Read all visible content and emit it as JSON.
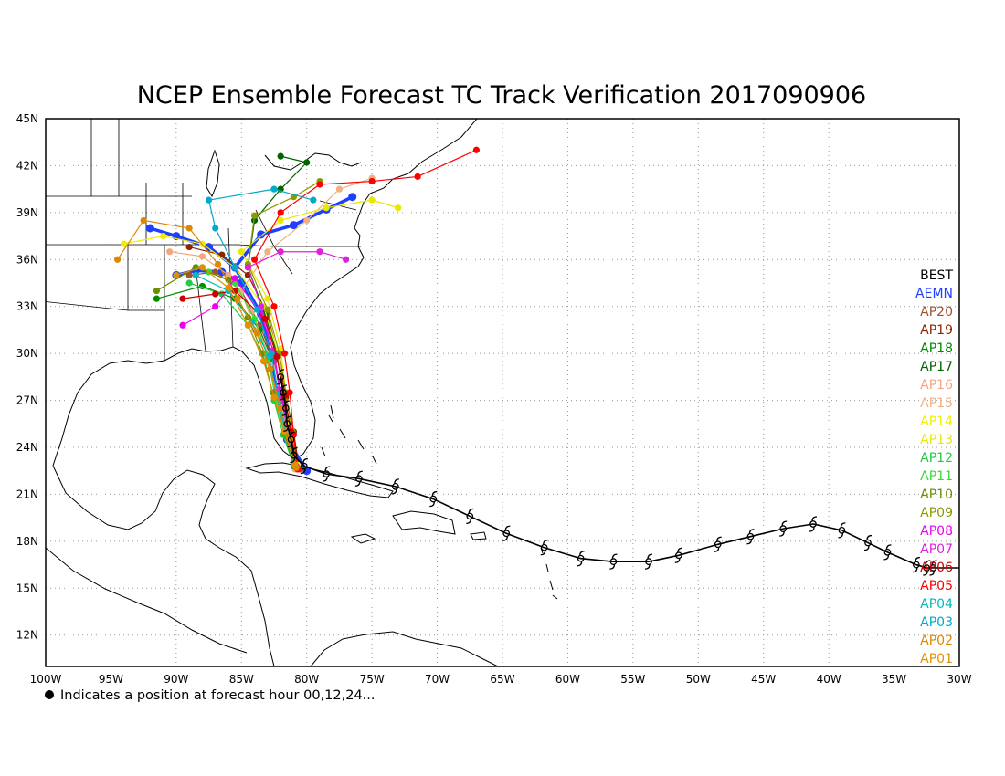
{
  "title": "NCEP Ensemble Forecast TC Track Verification 2017090906",
  "footnote": "Indicates a position at forecast hour 00,12,24...",
  "map": {
    "lon_range": [
      -100,
      -30
    ],
    "lat_range": [
      10,
      45
    ],
    "lon_ticks": [
      {
        "v": -100,
        "label": "100W"
      },
      {
        "v": -95,
        "label": "95W"
      },
      {
        "v": -90,
        "label": "90W"
      },
      {
        "v": -85,
        "label": "85W"
      },
      {
        "v": -80,
        "label": "80W"
      },
      {
        "v": -75,
        "label": "75W"
      },
      {
        "v": -70,
        "label": "70W"
      },
      {
        "v": -65,
        "label": "65W"
      },
      {
        "v": -60,
        "label": "60W"
      },
      {
        "v": -55,
        "label": "55W"
      },
      {
        "v": -50,
        "label": "50W"
      },
      {
        "v": -45,
        "label": "45W"
      },
      {
        "v": -40,
        "label": "40W"
      },
      {
        "v": -35,
        "label": "35W"
      },
      {
        "v": -30,
        "label": "30W"
      }
    ],
    "lat_ticks": [
      {
        "v": 12,
        "label": "12N"
      },
      {
        "v": 15,
        "label": "15N"
      },
      {
        "v": 18,
        "label": "18N"
      },
      {
        "v": 21,
        "label": "21N"
      },
      {
        "v": 24,
        "label": "24N"
      },
      {
        "v": 27,
        "label": "27N"
      },
      {
        "v": 30,
        "label": "30N"
      },
      {
        "v": 33,
        "label": "33N"
      },
      {
        "v": 36,
        "label": "36N"
      },
      {
        "v": 39,
        "label": "39N"
      },
      {
        "v": 42,
        "label": "42N"
      },
      {
        "v": 45,
        "label": "45N"
      }
    ],
    "grid": "dotted"
  },
  "legend": [
    {
      "label": "BEST",
      "color": "#000000"
    },
    {
      "label": "AEMN",
      "color": "#1f3fff"
    },
    {
      "label": "AP20",
      "color": "#a0522d"
    },
    {
      "label": "AP19",
      "color": "#8b2500"
    },
    {
      "label": "AP18",
      "color": "#008b00"
    },
    {
      "label": "AP17",
      "color": "#006400"
    },
    {
      "label": "AP16",
      "color": "#f4a582"
    },
    {
      "label": "AP15",
      "color": "#f0b080"
    },
    {
      "label": "AP14",
      "color": "#eeee00"
    },
    {
      "label": "AP13",
      "color": "#e8e800"
    },
    {
      "label": "AP12",
      "color": "#22cc44"
    },
    {
      "label": "AP11",
      "color": "#33dd33"
    },
    {
      "label": "AP10",
      "color": "#6a8f00"
    },
    {
      "label": "AP09",
      "color": "#8b9a00"
    },
    {
      "label": "AP08",
      "color": "#ee00ee"
    },
    {
      "label": "AP07",
      "color": "#dd22dd"
    },
    {
      "label": "AP06",
      "color": "#cc0000"
    },
    {
      "label": "AP05",
      "color": "#ff0000"
    },
    {
      "label": "AP04",
      "color": "#00bbbb"
    },
    {
      "label": "AP03",
      "color": "#00aacc"
    },
    {
      "label": "AP02",
      "color": "#dd8800"
    },
    {
      "label": "AP01",
      "color": "#e09000"
    }
  ],
  "chart_data": {
    "type": "scatter",
    "title": "NCEP Ensemble Forecast TC Track Verification 2017090906",
    "xlabel": "",
    "ylabel": "",
    "xlim": [
      -100,
      -30
    ],
    "ylim": [
      10,
      45
    ],
    "best_track": {
      "name": "BEST",
      "points": [
        [
          -32,
          16.3
        ],
        [
          -32.5,
          16.3
        ],
        [
          -33.3,
          16.5
        ],
        [
          -35.5,
          17.3
        ],
        [
          -37,
          17.9
        ],
        [
          -39,
          18.7
        ],
        [
          -41.2,
          19.1
        ],
        [
          -43.5,
          18.8
        ],
        [
          -46,
          18.3
        ],
        [
          -48.5,
          17.8
        ],
        [
          -51.5,
          17.1
        ],
        [
          -53.8,
          16.7
        ],
        [
          -56.5,
          16.7
        ],
        [
          -59,
          16.9
        ],
        [
          -61.8,
          17.6
        ],
        [
          -64.7,
          18.5
        ],
        [
          -67.5,
          19.6
        ],
        [
          -70.3,
          20.7
        ],
        [
          -73.2,
          21.5
        ],
        [
          -76,
          22.0
        ],
        [
          -78.5,
          22.3
        ],
        [
          -80.2,
          22.8
        ],
        [
          -81.0,
          23.5
        ],
        [
          -81.2,
          24.5
        ],
        [
          -81.5,
          25.5
        ],
        [
          -81.6,
          26.5
        ],
        [
          -81.8,
          27.5
        ],
        [
          -82.0,
          28.5
        ]
      ]
    },
    "ensemble": [
      {
        "name": "AEMN",
        "points": [
          [
            -80,
            22.5
          ],
          [
            -81.5,
            24.5
          ],
          [
            -82.3,
            27.5
          ],
          [
            -82.8,
            30.0
          ],
          [
            -83.5,
            32.5
          ],
          [
            -85,
            34.5
          ],
          [
            -86.5,
            35.2
          ],
          [
            -88.5,
            35.3
          ],
          [
            -90,
            35.0
          ]
        ]
      },
      {
        "name": "AEMN",
        "points": [
          [
            -83.5,
            32.5
          ],
          [
            -85.5,
            35.5
          ],
          [
            -87.5,
            36.8
          ],
          [
            -90,
            37.5
          ],
          [
            -92,
            38.0
          ]
        ]
      },
      {
        "name": "AEMN",
        "points": [
          [
            -85.5,
            35.5
          ],
          [
            -83.5,
            37.6
          ],
          [
            -81,
            38.2
          ],
          [
            -78.5,
            39.2
          ],
          [
            -76.5,
            40.0
          ]
        ]
      },
      {
        "name": "AP20",
        "points": [
          [
            -80.5,
            22.6
          ],
          [
            -81.3,
            24.8
          ],
          [
            -81.8,
            27.0
          ],
          [
            -82.5,
            29.5
          ],
          [
            -83.6,
            31.8
          ],
          [
            -85,
            34.0
          ],
          [
            -87,
            35.2
          ],
          [
            -89,
            35.0
          ]
        ]
      },
      {
        "name": "AP19",
        "points": [
          [
            -80.6,
            22.7
          ],
          [
            -81.0,
            25.0
          ],
          [
            -81.6,
            27.2
          ],
          [
            -82.2,
            29.8
          ],
          [
            -83.0,
            32.5
          ],
          [
            -84.5,
            35.0
          ],
          [
            -86.5,
            36.3
          ],
          [
            -89,
            36.8
          ]
        ]
      },
      {
        "name": "AP18",
        "points": [
          [
            -80.8,
            22.8
          ],
          [
            -81.5,
            24.7
          ],
          [
            -82.1,
            27.0
          ],
          [
            -82.6,
            29.5
          ],
          [
            -83.6,
            31.5
          ],
          [
            -85.5,
            33.5
          ],
          [
            -88.0,
            34.3
          ],
          [
            -91.5,
            33.5
          ]
        ]
      },
      {
        "name": "AP17",
        "points": [
          [
            -80.7,
            22.7
          ],
          [
            -81.2,
            25.0
          ],
          [
            -81.8,
            27.5
          ],
          [
            -82.3,
            30.0
          ],
          [
            -83.2,
            32.5
          ],
          [
            -84.5,
            35.5
          ],
          [
            -84.0,
            38.5
          ],
          [
            -82,
            40.5
          ],
          [
            -80,
            42.2
          ],
          [
            -82,
            42.6
          ]
        ]
      },
      {
        "name": "AP16",
        "points": [
          [
            -81.0,
            22.9
          ],
          [
            -81.7,
            25.0
          ],
          [
            -82.3,
            27.5
          ],
          [
            -83.0,
            30.0
          ],
          [
            -84.2,
            32.7
          ],
          [
            -86.0,
            35.0
          ],
          [
            -88.0,
            36.2
          ],
          [
            -90.5,
            36.5
          ]
        ]
      },
      {
        "name": "AP15",
        "points": [
          [
            -80.9,
            22.6
          ],
          [
            -81.4,
            24.5
          ],
          [
            -82.2,
            27.0
          ],
          [
            -82.8,
            29.3
          ],
          [
            -84.0,
            31.5
          ],
          [
            -85.0,
            34.0
          ],
          [
            -83.0,
            36.5
          ],
          [
            -80.0,
            38.5
          ],
          [
            -77.5,
            40.5
          ],
          [
            -75.0,
            41.2
          ]
        ]
      },
      {
        "name": "AP14",
        "points": [
          [
            -80.8,
            22.9
          ],
          [
            -81.3,
            25.0
          ],
          [
            -81.8,
            27.5
          ],
          [
            -82.2,
            30.0
          ],
          [
            -83.3,
            33.0
          ],
          [
            -85.5,
            35.5
          ],
          [
            -88,
            37.0
          ],
          [
            -91,
            37.5
          ],
          [
            -94,
            37.0
          ]
        ]
      },
      {
        "name": "AP13",
        "points": [
          [
            -80.7,
            22.8
          ],
          [
            -81.2,
            25.2
          ],
          [
            -81.6,
            27.5
          ],
          [
            -82.0,
            30.3
          ],
          [
            -83.0,
            33.5
          ],
          [
            -85.0,
            36.5
          ],
          [
            -82.0,
            38.5
          ],
          [
            -78.5,
            39.3
          ],
          [
            -75,
            39.8
          ],
          [
            -73,
            39.3
          ]
        ]
      },
      {
        "name": "AP12",
        "points": [
          [
            -81.0,
            22.8
          ],
          [
            -81.8,
            24.8
          ],
          [
            -82.5,
            27.0
          ],
          [
            -83.2,
            29.5
          ],
          [
            -84.5,
            31.8
          ],
          [
            -86.5,
            33.8
          ],
          [
            -89.0,
            34.5
          ]
        ]
      },
      {
        "name": "AP11",
        "points": [
          [
            -80.9,
            22.9
          ],
          [
            -81.6,
            25.0
          ],
          [
            -82.4,
            27.2
          ],
          [
            -83.0,
            29.8
          ],
          [
            -84.0,
            32.2
          ],
          [
            -85.5,
            34.5
          ],
          [
            -87.5,
            35.2
          ]
        ]
      },
      {
        "name": "AP10",
        "points": [
          [
            -81.0,
            22.8
          ],
          [
            -81.7,
            24.9
          ],
          [
            -82.6,
            27.5
          ],
          [
            -83.4,
            30.0
          ],
          [
            -84.5,
            32.3
          ],
          [
            -86.0,
            34.7
          ],
          [
            -88.5,
            35.5
          ],
          [
            -91.5,
            34.0
          ]
        ]
      },
      {
        "name": "AP09",
        "points": [
          [
            -80.7,
            22.7
          ],
          [
            -81.1,
            25.0
          ],
          [
            -81.6,
            27.5
          ],
          [
            -82.1,
            30.0
          ],
          [
            -83.0,
            32.8
          ],
          [
            -84.5,
            35.7
          ],
          [
            -84.0,
            38.8
          ],
          [
            -81,
            40.0
          ],
          [
            -79,
            41.0
          ]
        ]
      },
      {
        "name": "AP08",
        "points": [
          [
            -80.8,
            22.8
          ],
          [
            -81.4,
            25.0
          ],
          [
            -82.0,
            27.6
          ],
          [
            -82.5,
            30.0
          ],
          [
            -83.5,
            32.5
          ],
          [
            -85.5,
            34.8
          ],
          [
            -87.0,
            33.0
          ],
          [
            -89.5,
            31.8
          ]
        ]
      },
      {
        "name": "AP07",
        "points": [
          [
            -80.9,
            22.9
          ],
          [
            -81.5,
            25.2
          ],
          [
            -82.1,
            27.7
          ],
          [
            -82.6,
            30.2
          ],
          [
            -83.5,
            33.0
          ],
          [
            -84.5,
            35.5
          ],
          [
            -82.0,
            36.5
          ],
          [
            -79,
            36.5
          ],
          [
            -77,
            36.0
          ]
        ]
      },
      {
        "name": "AP06",
        "points": [
          [
            -80.8,
            22.7
          ],
          [
            -81.2,
            25.0
          ],
          [
            -81.7,
            27.3
          ],
          [
            -82.3,
            29.8
          ],
          [
            -83.2,
            32.2
          ],
          [
            -85.5,
            34.0
          ],
          [
            -87.0,
            33.8
          ],
          [
            -89.5,
            33.5
          ]
        ]
      },
      {
        "name": "AP05",
        "points": [
          [
            -80.7,
            22.6
          ],
          [
            -81.0,
            24.8
          ],
          [
            -81.3,
            27.5
          ],
          [
            -81.7,
            30.0
          ],
          [
            -82.5,
            33.0
          ],
          [
            -84.0,
            36.0
          ],
          [
            -82.0,
            39.0
          ],
          [
            -79,
            40.8
          ],
          [
            -75,
            41.0
          ],
          [
            -71.5,
            41.3
          ],
          [
            -67,
            43.0
          ]
        ]
      },
      {
        "name": "AP04",
        "points": [
          [
            -81.0,
            22.9
          ],
          [
            -81.6,
            25.0
          ],
          [
            -82.3,
            27.3
          ],
          [
            -82.9,
            29.8
          ],
          [
            -84.2,
            32.0
          ],
          [
            -86.0,
            34.0
          ],
          [
            -88.5,
            35.0
          ]
        ]
      },
      {
        "name": "AP03",
        "points": [
          [
            -80.9,
            22.8
          ],
          [
            -81.5,
            24.9
          ],
          [
            -82.2,
            27.4
          ],
          [
            -82.7,
            30.0
          ],
          [
            -83.8,
            32.8
          ],
          [
            -85.5,
            35.5
          ],
          [
            -87,
            38.0
          ],
          [
            -87.5,
            39.8
          ],
          [
            -82.5,
            40.5
          ],
          [
            -79.5,
            39.8
          ]
        ]
      },
      {
        "name": "AP02",
        "points": [
          [
            -80.8,
            22.7
          ],
          [
            -81.3,
            24.5
          ],
          [
            -82.0,
            26.5
          ],
          [
            -82.8,
            29.0
          ],
          [
            -83.8,
            31.3
          ],
          [
            -85.3,
            33.5
          ],
          [
            -86.8,
            35.7
          ],
          [
            -89,
            38.0
          ],
          [
            -92.5,
            38.5
          ],
          [
            -94.5,
            36.0
          ]
        ]
      },
      {
        "name": "AP01",
        "points": [
          [
            -80.9,
            22.9
          ],
          [
            -81.7,
            25.0
          ],
          [
            -82.5,
            27.2
          ],
          [
            -83.3,
            29.5
          ],
          [
            -84.5,
            31.8
          ],
          [
            -86.0,
            34.2
          ],
          [
            -88.0,
            35.5
          ],
          [
            -90.0,
            35.0
          ]
        ]
      }
    ]
  }
}
